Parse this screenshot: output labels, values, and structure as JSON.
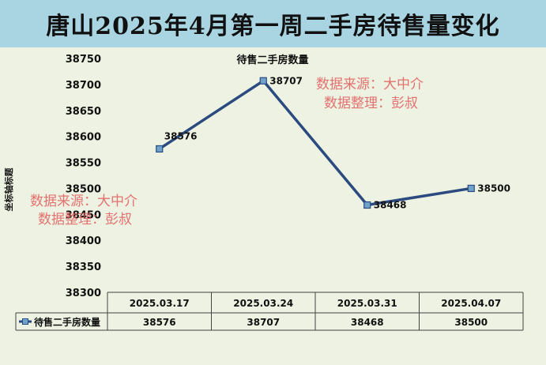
{
  "header": {
    "title": "唐山2025年4月第一周二手房待售量变化"
  },
  "watermark": {
    "line1": "数据来源：大中介",
    "line2": "数据整理：彭叔"
  },
  "colors": {
    "line": "#2a4a80",
    "marker_fill": "#6fa3c9",
    "banner": "#a9d5e3",
    "panel": "#eef2e2",
    "watermark": "#e05b5b"
  },
  "chart_data": {
    "type": "line",
    "title": "待售二手房数量",
    "ylabel": "坐标轴标题",
    "categories": [
      "2025.03.17",
      "2025.03.24",
      "2025.03.31",
      "2025.04.07"
    ],
    "series": [
      {
        "name": "待售二手房数量",
        "values": [
          38576,
          38707,
          38468,
          38500
        ]
      }
    ],
    "ylim": [
      38300,
      38750
    ],
    "yticks": [
      38750,
      38700,
      38650,
      38600,
      38550,
      38500,
      38450,
      38400,
      38350,
      38300
    ],
    "grid": false,
    "legend": "data-table",
    "data_table": true
  }
}
